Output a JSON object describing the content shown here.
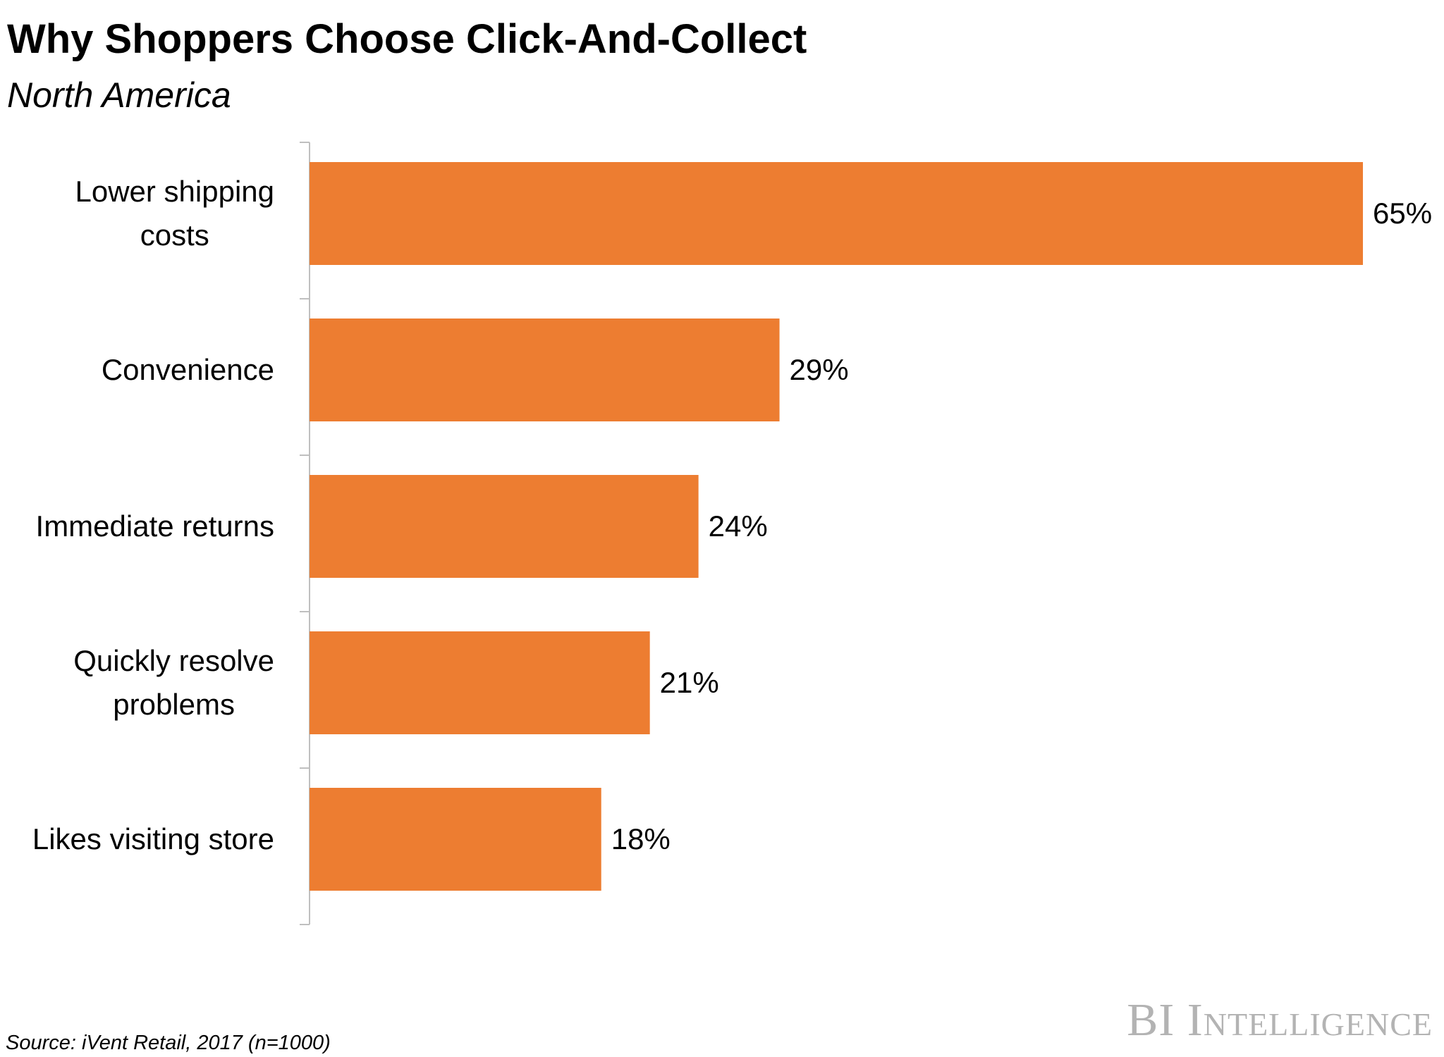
{
  "chart_data": {
    "type": "bar",
    "orientation": "horizontal",
    "title": "Why Shoppers Choose Click-And-Collect",
    "subtitle": "North America",
    "categories": [
      "Lower shipping\ncosts",
      "Convenience",
      "Immediate returns",
      "Quickly resolve\nproblems",
      "Likes visiting store"
    ],
    "values": [
      65,
      29,
      24,
      21,
      18
    ],
    "value_labels": [
      "65%",
      "29%",
      "24%",
      "21%",
      "18%"
    ],
    "color": "#ed7d31",
    "source": "Source: iVent Retail, 2017 (n=1000)",
    "branding": "BI Intelligence"
  }
}
